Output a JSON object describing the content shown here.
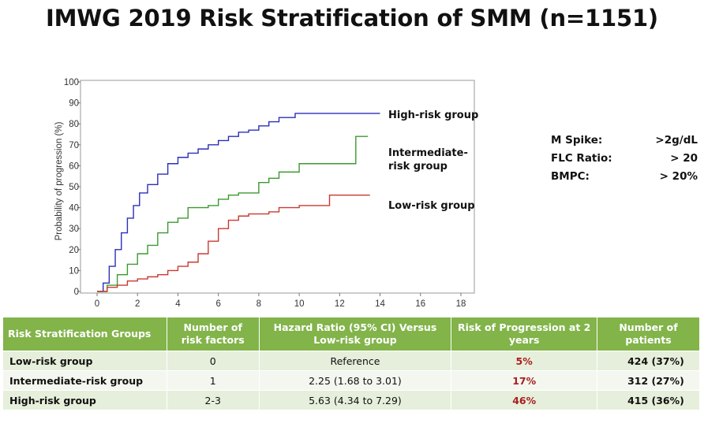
{
  "title": "IMWG 2019 Risk Stratification of SMM (n=1151)",
  "chart_data": {
    "type": "line",
    "title": "",
    "ylabel": "Probability of progression (%)",
    "xlabel": "",
    "xlim": [
      0,
      18
    ],
    "ylim": [
      0,
      100
    ],
    "x_ticks": [
      0,
      2,
      4,
      6,
      8,
      10,
      12,
      14,
      16,
      18
    ],
    "y_ticks": [
      0,
      10,
      20,
      30,
      40,
      50,
      60,
      70,
      80,
      90,
      100
    ],
    "grid": false,
    "series": [
      {
        "name": "High-risk group",
        "color": "#2b2fb8",
        "points": [
          [
            0,
            0
          ],
          [
            0.3,
            4
          ],
          [
            0.6,
            12
          ],
          [
            0.9,
            20
          ],
          [
            1.2,
            28
          ],
          [
            1.5,
            35
          ],
          [
            1.8,
            41
          ],
          [
            2.1,
            47
          ],
          [
            2.5,
            51
          ],
          [
            3.0,
            56
          ],
          [
            3.5,
            61
          ],
          [
            4.0,
            64
          ],
          [
            4.5,
            66
          ],
          [
            5.0,
            68
          ],
          [
            5.5,
            70
          ],
          [
            6.0,
            72
          ],
          [
            6.5,
            74
          ],
          [
            7.0,
            76
          ],
          [
            7.5,
            77
          ],
          [
            8.0,
            79
          ],
          [
            8.5,
            81
          ],
          [
            9.0,
            83
          ],
          [
            9.8,
            85
          ],
          [
            11.0,
            85
          ],
          [
            14.0,
            85
          ]
        ]
      },
      {
        "name": "Intermediate-risk group",
        "color": "#3a9a2e",
        "points": [
          [
            0,
            0
          ],
          [
            0.5,
            3
          ],
          [
            1.0,
            8
          ],
          [
            1.5,
            13
          ],
          [
            2.0,
            18
          ],
          [
            2.5,
            22
          ],
          [
            3.0,
            28
          ],
          [
            3.5,
            33
          ],
          [
            4.0,
            35
          ],
          [
            4.5,
            40
          ],
          [
            5.0,
            40
          ],
          [
            5.5,
            41
          ],
          [
            6.0,
            44
          ],
          [
            6.5,
            46
          ],
          [
            7.0,
            47
          ],
          [
            7.5,
            47
          ],
          [
            8.0,
            52
          ],
          [
            8.5,
            54
          ],
          [
            9.0,
            57
          ],
          [
            9.5,
            57
          ],
          [
            10.0,
            61
          ],
          [
            11.5,
            61
          ],
          [
            12.8,
            61
          ],
          [
            12.8,
            74
          ],
          [
            13.4,
            74
          ]
        ]
      },
      {
        "name": "Low-risk group",
        "color": "#c83a32",
        "points": [
          [
            0,
            0
          ],
          [
            0.5,
            2
          ],
          [
            1.0,
            3
          ],
          [
            1.5,
            5
          ],
          [
            2.0,
            6
          ],
          [
            2.5,
            7
          ],
          [
            3.0,
            8
          ],
          [
            3.5,
            10
          ],
          [
            4.0,
            12
          ],
          [
            4.5,
            14
          ],
          [
            5.0,
            18
          ],
          [
            5.5,
            24
          ],
          [
            6.0,
            30
          ],
          [
            6.5,
            34
          ],
          [
            7.0,
            36
          ],
          [
            7.5,
            37
          ],
          [
            8.0,
            37
          ],
          [
            8.5,
            38
          ],
          [
            9.0,
            40
          ],
          [
            10.0,
            41
          ],
          [
            11.0,
            41
          ],
          [
            11.5,
            41
          ],
          [
            11.5,
            46
          ],
          [
            13.5,
            46
          ]
        ]
      }
    ],
    "curve_labels": [
      "High-risk group",
      "Intermediate-\nrisk group",
      "Low-risk group"
    ]
  },
  "criteria": [
    {
      "label": "M Spike:",
      "value": ">2g/dL"
    },
    {
      "label": "FLC Ratio:",
      "value": "> 20"
    },
    {
      "label": "BMPC:",
      "value": "> 20%"
    }
  ],
  "table": {
    "headers": [
      "Risk Stratification Groups",
      "Number of risk factors",
      "Hazard Ratio (95% CI) Versus Low-risk group",
      "Risk of Progression at 2 years",
      "Number of patients"
    ],
    "rows": [
      [
        "Low-risk group",
        "0",
        "Reference",
        "5%",
        "424 (37%)"
      ],
      [
        "Intermediate-risk group",
        "1",
        "2.25 (1.68 to 3.01)",
        "17%",
        "312 (27%)"
      ],
      [
        "High-risk group",
        "2-3",
        "5.63 (4.34 to 7.29)",
        "46%",
        "415 (36%)"
      ]
    ]
  },
  "colors": {
    "header_green": "#82b44a",
    "row_light": "#e6efdb",
    "risk_red": "#a82020"
  }
}
